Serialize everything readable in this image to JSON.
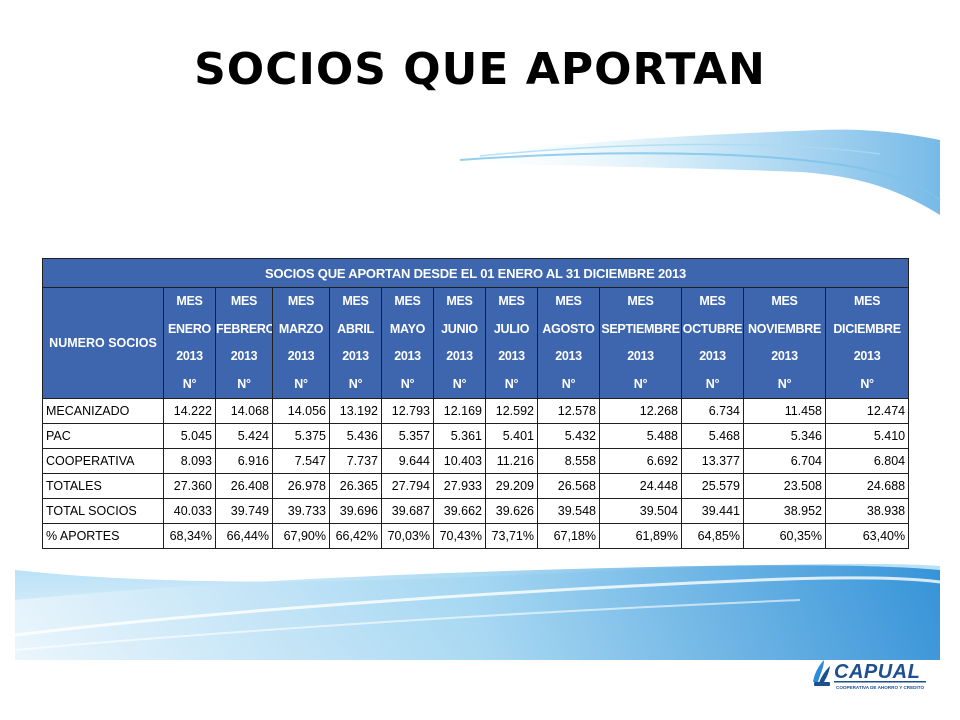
{
  "slide": {
    "title": "SOCIOS QUE APORTAN"
  },
  "table": {
    "banner": "SOCIOS QUE APORTAN DESDE EL 01 ENERO AL 31 DICIEMBRE 2013",
    "row_header": "NUMERO SOCIOS",
    "columns": [
      {
        "l1": "MES",
        "l2": "ENERO",
        "l3": "2013",
        "l4": "N°"
      },
      {
        "l1": "MES",
        "l2": "FEBRERO",
        "l3": "2013",
        "l4": "N°"
      },
      {
        "l1": "MES",
        "l2": "MARZO",
        "l3": "2013",
        "l4": "N°"
      },
      {
        "l1": "MES",
        "l2": "ABRIL",
        "l3": "2013",
        "l4": "N°"
      },
      {
        "l1": "MES",
        "l2": "MAYO",
        "l3": "2013",
        "l4": "N°"
      },
      {
        "l1": "MES",
        "l2": "JUNIO",
        "l3": "2013",
        "l4": "N°"
      },
      {
        "l1": "MES",
        "l2": "JULIO",
        "l3": "2013",
        "l4": "N°"
      },
      {
        "l1": "MES",
        "l2": "AGOSTO",
        "l3": "2013",
        "l4": "N°"
      },
      {
        "l1": "MES",
        "l2": "SEPTIEMBRE",
        "l3": "2013",
        "l4": "N°"
      },
      {
        "l1": "MES",
        "l2": "OCTUBRE",
        "l3": "2013",
        "l4": "N°"
      },
      {
        "l1": "MES",
        "l2": "NOVIEMBRE",
        "l3": "2013",
        "l4": "N°"
      },
      {
        "l1": "MES",
        "l2": "DICIEMBRE",
        "l3": "2013",
        "l4": "N°"
      }
    ],
    "rows": [
      {
        "name": "MECANIZADO",
        "values": [
          "14.222",
          "14.068",
          "14.056",
          "13.192",
          "12.793",
          "12.169",
          "12.592",
          "12.578",
          "12.268",
          "6.734",
          "11.458",
          "12.474"
        ]
      },
      {
        "name": "PAC",
        "values": [
          "5.045",
          "5.424",
          "5.375",
          "5.436",
          "5.357",
          "5.361",
          "5.401",
          "5.432",
          "5.488",
          "5.468",
          "5.346",
          "5.410"
        ]
      },
      {
        "name": "COOPERATIVA",
        "values": [
          "8.093",
          "6.916",
          "7.547",
          "7.737",
          "9.644",
          "10.403",
          "11.216",
          "8.558",
          "6.692",
          "13.377",
          "6.704",
          "6.804"
        ]
      },
      {
        "name": "TOTALES",
        "values": [
          "27.360",
          "26.408",
          "26.978",
          "26.365",
          "27.794",
          "27.933",
          "29.209",
          "26.568",
          "24.448",
          "25.579",
          "23.508",
          "24.688"
        ]
      },
      {
        "name": "TOTAL SOCIOS",
        "values": [
          "40.033",
          "39.749",
          "39.733",
          "39.696",
          "39.687",
          "39.662",
          "39.626",
          "39.548",
          "39.504",
          "39.441",
          "38.952",
          "38.938"
        ]
      },
      {
        "name": "% APORTES",
        "values": [
          "68,34%",
          "66,44%",
          "67,90%",
          "66,42%",
          "70,03%",
          "70,43%",
          "73,71%",
          "67,18%",
          "61,89%",
          "64,85%",
          "60,35%",
          "63,40%"
        ]
      }
    ]
  },
  "logo": {
    "text": "CAPUAL",
    "subtitle": "COOPERATIVA DE AHORRO Y CREDITO",
    "color": "#1d4f91"
  },
  "colors": {
    "header_bg": "#3d66ae",
    "swoosh": "#4aa3df"
  }
}
